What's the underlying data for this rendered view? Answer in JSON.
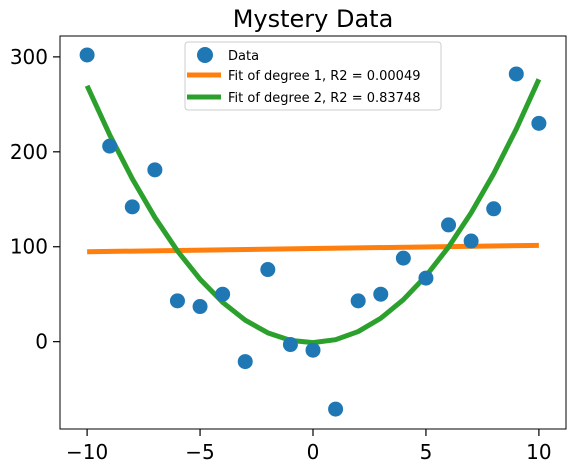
{
  "chart_data": {
    "type": "scatter",
    "title": "Mystery Data",
    "xlabel": "",
    "ylabel": "",
    "xlim": [
      -11.2,
      11.2
    ],
    "ylim": [
      -92,
      322
    ],
    "xticks": [
      -10,
      -5,
      0,
      5,
      10
    ],
    "xtick_labels": [
      "−10",
      "−5",
      "0",
      "5",
      "10"
    ],
    "yticks": [
      0,
      100,
      200,
      300
    ],
    "ytick_labels": [
      "0",
      "100",
      "200",
      "300"
    ],
    "grid": false,
    "legend_position": "top-center",
    "scatter": {
      "name": "Data",
      "color": "#1f77b4",
      "x": [
        -10,
        -9,
        -8,
        -7,
        -6,
        -5,
        -4,
        -3,
        -2,
        -1,
        0,
        1,
        2,
        3,
        4,
        5,
        6,
        7,
        8,
        9,
        10
      ],
      "y": [
        302,
        206,
        142,
        181,
        43,
        37,
        50,
        -21,
        76,
        -3,
        -9,
        -71,
        43,
        50,
        88,
        67,
        123,
        106,
        140,
        282,
        230
      ]
    },
    "fits": [
      {
        "name": "Fit of degree 1, R2 = 0.00049",
        "color": "#ff7f0e",
        "degree": 1,
        "coefficients": [
          98.1,
          0.34
        ]
      },
      {
        "name": "Fit of degree 2, R2 = 0.83748",
        "color": "#2ca02c",
        "degree": 2,
        "coefficients": [
          -1.0,
          0.34,
          2.74
        ]
      }
    ]
  }
}
